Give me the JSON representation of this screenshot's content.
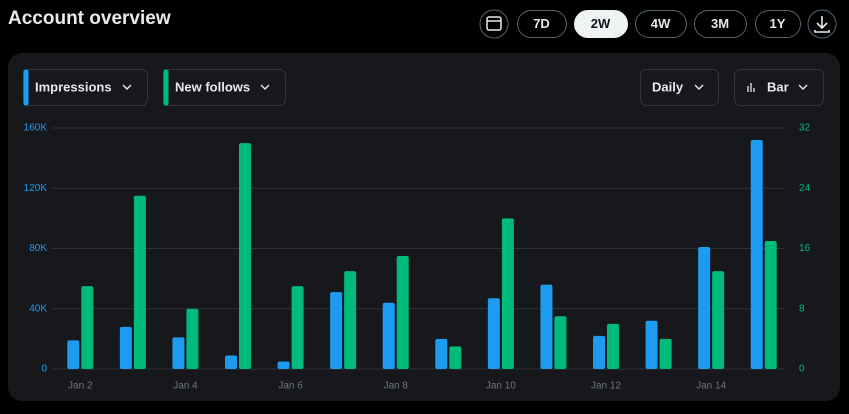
{
  "header": {
    "title": "Account overview",
    "ranges": [
      "7D",
      "2W",
      "4W",
      "3M",
      "1Y"
    ],
    "selected_range": 1
  },
  "controls": {
    "interval": "Daily",
    "chart_style": "Bar"
  },
  "chart_data": {
    "type": "bar",
    "categories": [
      "Jan 2",
      null,
      "Jan 4",
      null,
      "Jan 6",
      null,
      "Jan 8",
      null,
      "Jan 10",
      null,
      "Jan 12",
      null,
      "Jan 14",
      null
    ],
    "series": [
      {
        "name": "Impressions",
        "color": "#1d9bf0",
        "axis": "y",
        "values": [
          19000,
          28000,
          21000,
          9000,
          5000,
          51000,
          44000,
          20000,
          47000,
          56000,
          22000,
          32000,
          81000,
          152000
        ]
      },
      {
        "name": "New follows",
        "color": "#00ba7c",
        "axis": "y2",
        "values": [
          11,
          23,
          8,
          30,
          11,
          13,
          15,
          3,
          20,
          7,
          6,
          4,
          13,
          17
        ]
      }
    ],
    "ylim": [
      0,
      160000
    ],
    "yticks": [
      0,
      {
        "value": 40000,
        "label": "40K"
      },
      {
        "value": 80000,
        "label": "80K"
      },
      {
        "value": 120000,
        "label": "120K"
      },
      {
        "value": 160000,
        "label": "160K"
      }
    ],
    "y2lim": [
      0,
      32
    ],
    "y2ticks": [
      0,
      8,
      16,
      24,
      32
    ],
    "grid": true
  }
}
